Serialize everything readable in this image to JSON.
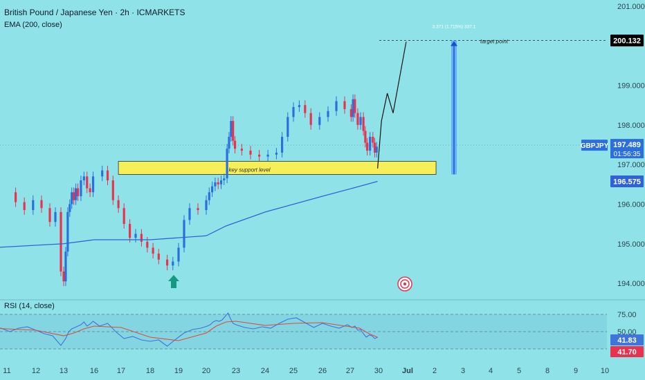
{
  "header": {
    "symbol_title": "British Pound / Japanese Yen · 2h · ICMARKETS",
    "ema_label": "EMA (200, close)",
    "rsi_label": "RSI (14, close)"
  },
  "colors": {
    "background": "#8fe3e8",
    "bull_candle": "#2a6fdb",
    "bear_candle": "#e8334f",
    "ema_line": "#2f62d6",
    "rsi_line": "#3f74d8",
    "rsi_ma_line": "#e04a3c",
    "support_zone": "#f6ef5a",
    "projection_bar": "#5a9cff",
    "arrow_marker": "#149a83"
  },
  "chart_data": {
    "type": "line",
    "price_axis": {
      "ticks": [
        "201.000",
        "199.000",
        "198.000",
        "197.000",
        "196.000",
        "195.000",
        "194.000"
      ],
      "range": [
        193.6,
        201.05
      ]
    },
    "date_axis": {
      "ticks": [
        "11",
        "12",
        "13",
        "16",
        "17",
        "18",
        "19",
        "20",
        "23",
        "24",
        "25",
        "26",
        "27",
        "30",
        "Jul",
        "2",
        "3",
        "4",
        "5",
        "8",
        "9",
        "10"
      ]
    },
    "price_series": [
      {
        "d": 11.0,
        "p": 196.3
      },
      {
        "d": 11.3,
        "p": 196.05
      },
      {
        "d": 11.6,
        "p": 195.85
      },
      {
        "d": 11.9,
        "p": 196.1
      },
      {
        "d": 12.2,
        "p": 195.9
      },
      {
        "d": 12.5,
        "p": 195.55
      },
      {
        "d": 12.7,
        "p": 195.8
      },
      {
        "d": 12.9,
        "p": 194.3
      },
      {
        "d": 13.0,
        "p": 194.05
      },
      {
        "d": 13.2,
        "p": 194.8
      },
      {
        "d": 13.4,
        "p": 195.8
      },
      {
        "d": 13.6,
        "p": 196.0
      },
      {
        "d": 13.8,
        "p": 196.3
      },
      {
        "d": 14.0,
        "p": 196.1
      },
      {
        "d": 14.2,
        "p": 196.4
      },
      {
        "d": 14.4,
        "p": 196.2
      },
      {
        "d": 14.7,
        "p": 196.6
      },
      {
        "d": 15.0,
        "p": 196.7
      },
      {
        "d": 15.3,
        "p": 196.4
      },
      {
        "d": 15.6,
        "p": 196.3
      },
      {
        "d": 15.9,
        "p": 196.7
      },
      {
        "d": 16.3,
        "p": 196.85
      },
      {
        "d": 16.5,
        "p": 196.6
      },
      {
        "d": 16.7,
        "p": 196.1
      },
      {
        "d": 16.9,
        "p": 195.9
      },
      {
        "d": 17.1,
        "p": 195.5
      },
      {
        "d": 17.3,
        "p": 195.15
      },
      {
        "d": 17.5,
        "p": 195.25
      },
      {
        "d": 17.7,
        "p": 195.05
      },
      {
        "d": 17.9,
        "p": 194.9
      },
      {
        "d": 18.1,
        "p": 194.75
      },
      {
        "d": 18.3,
        "p": 194.6
      },
      {
        "d": 18.6,
        "p": 194.45
      },
      {
        "d": 18.8,
        "p": 194.55
      },
      {
        "d": 19.0,
        "p": 194.9
      },
      {
        "d": 19.2,
        "p": 195.6
      },
      {
        "d": 19.4,
        "p": 195.9
      },
      {
        "d": 19.7,
        "p": 195.85
      },
      {
        "d": 20.0,
        "p": 196.1
      },
      {
        "d": 20.3,
        "p": 196.3
      },
      {
        "d": 20.6,
        "p": 196.45
      },
      {
        "d": 20.9,
        "p": 196.55
      },
      {
        "d": 21.2,
        "p": 196.5
      },
      {
        "d": 21.5,
        "p": 196.6
      },
      {
        "d": 21.8,
        "p": 196.65
      },
      {
        "d": 22.1,
        "p": 197.4
      },
      {
        "d": 22.3,
        "p": 197.7
      },
      {
        "d": 22.5,
        "p": 198.1
      },
      {
        "d": 22.7,
        "p": 197.6
      },
      {
        "d": 22.9,
        "p": 197.4
      },
      {
        "d": 23.2,
        "p": 197.35
      },
      {
        "d": 23.5,
        "p": 197.25
      },
      {
        "d": 23.8,
        "p": 197.2
      },
      {
        "d": 24.1,
        "p": 197.25
      },
      {
        "d": 24.4,
        "p": 197.3
      },
      {
        "d": 24.6,
        "p": 197.7
      },
      {
        "d": 24.8,
        "p": 198.2
      },
      {
        "d": 25.0,
        "p": 198.45
      },
      {
        "d": 25.2,
        "p": 198.5
      },
      {
        "d": 25.4,
        "p": 198.3
      },
      {
        "d": 25.6,
        "p": 198.0
      },
      {
        "d": 25.9,
        "p": 198.2
      },
      {
        "d": 26.2,
        "p": 198.35
      },
      {
        "d": 26.5,
        "p": 198.6
      },
      {
        "d": 26.8,
        "p": 198.4
      },
      {
        "d": 27.1,
        "p": 198.2
      },
      {
        "d": 27.3,
        "p": 198.65
      },
      {
        "d": 27.5,
        "p": 198.3
      },
      {
        "d": 27.8,
        "p": 198.0
      },
      {
        "d": 28.1,
        "p": 198.2
      },
      {
        "d": 28.4,
        "p": 197.85
      },
      {
        "d": 28.6,
        "p": 197.55
      },
      {
        "d": 28.8,
        "p": 197.35
      },
      {
        "d": 29.1,
        "p": 197.7
      },
      {
        "d": 29.4,
        "p": 197.55
      },
      {
        "d": 29.6,
        "p": 197.3
      },
      {
        "d": 29.8,
        "p": 197.45
      }
    ],
    "ema_series": [
      {
        "d": 10.5,
        "p": 194.9
      },
      {
        "d": 13.0,
        "p": 195.0
      },
      {
        "d": 16.0,
        "p": 195.1
      },
      {
        "d": 18.0,
        "p": 195.1
      },
      {
        "d": 20.0,
        "p": 195.2
      },
      {
        "d": 22.0,
        "p": 195.45
      },
      {
        "d": 24.0,
        "p": 195.8
      },
      {
        "d": 26.0,
        "p": 196.2
      },
      {
        "d": 28.0,
        "p": 196.45
      },
      {
        "d": 29.9,
        "p": 196.575
      }
    ],
    "projection_path": [
      {
        "d": 29.9,
        "p": 196.9
      },
      {
        "d": 30.1,
        "p": 198.1
      },
      {
        "d": 30.3,
        "p": 198.8
      },
      {
        "d": 30.5,
        "p": 198.3
      },
      {
        "d": 30.95,
        "p": 200.1
      }
    ],
    "support_zone": {
      "label": "key support level",
      "from": 196.75,
      "to": 197.08,
      "start": 16.9,
      "end": 32.05
    },
    "target": {
      "label": "target point",
      "value": 200.132,
      "value_label": "200.132",
      "measure_label": "3.371 (1.715%) 337.1"
    },
    "current": {
      "symbol": "GBPJPY",
      "price": "197.489",
      "countdown": "01:56:35"
    },
    "ema_value_label": "196.575",
    "rsi": {
      "ticks": [
        "75.00",
        "50.00"
      ],
      "value_label": "41.83",
      "ma_value_label": "41.70",
      "series": [
        {
          "d": 10.5,
          "v": 53
        },
        {
          "d": 10.8,
          "v": 55
        },
        {
          "d": 11.1,
          "v": 50
        },
        {
          "d": 11.4,
          "v": 55
        },
        {
          "d": 11.7,
          "v": 57
        },
        {
          "d": 12.0,
          "v": 52
        },
        {
          "d": 12.3,
          "v": 47
        },
        {
          "d": 12.6,
          "v": 44
        },
        {
          "d": 12.9,
          "v": 30
        },
        {
          "d": 13.2,
          "v": 40
        },
        {
          "d": 13.5,
          "v": 50
        },
        {
          "d": 13.8,
          "v": 54
        },
        {
          "d": 14.1,
          "v": 56
        },
        {
          "d": 14.4,
          "v": 58
        },
        {
          "d": 14.7,
          "v": 60
        },
        {
          "d": 15.0,
          "v": 64
        },
        {
          "d": 15.3,
          "v": 58
        },
        {
          "d": 15.6,
          "v": 61
        },
        {
          "d": 15.9,
          "v": 65
        },
        {
          "d": 16.2,
          "v": 58
        },
        {
          "d": 16.5,
          "v": 62
        },
        {
          "d": 16.8,
          "v": 50
        },
        {
          "d": 17.1,
          "v": 40
        },
        {
          "d": 17.4,
          "v": 43
        },
        {
          "d": 17.7,
          "v": 38
        },
        {
          "d": 18.0,
          "v": 36
        },
        {
          "d": 18.3,
          "v": 38
        },
        {
          "d": 18.6,
          "v": 29
        },
        {
          "d": 18.9,
          "v": 39
        },
        {
          "d": 19.2,
          "v": 48
        },
        {
          "d": 19.5,
          "v": 53
        },
        {
          "d": 19.8,
          "v": 55
        },
        {
          "d": 20.1,
          "v": 58
        },
        {
          "d": 20.4,
          "v": 60
        },
        {
          "d": 20.7,
          "v": 64
        },
        {
          "d": 21.0,
          "v": 66
        },
        {
          "d": 21.3,
          "v": 65
        },
        {
          "d": 21.6,
          "v": 67
        },
        {
          "d": 21.9,
          "v": 72
        },
        {
          "d": 22.2,
          "v": 77
        },
        {
          "d": 22.4,
          "v": 70
        },
        {
          "d": 22.7,
          "v": 62
        },
        {
          "d": 23.0,
          "v": 60
        },
        {
          "d": 23.3,
          "v": 56
        },
        {
          "d": 23.6,
          "v": 54
        },
        {
          "d": 23.9,
          "v": 57
        },
        {
          "d": 24.2,
          "v": 55
        },
        {
          "d": 24.5,
          "v": 62
        },
        {
          "d": 24.8,
          "v": 68
        },
        {
          "d": 25.1,
          "v": 70
        },
        {
          "d": 25.4,
          "v": 63
        },
        {
          "d": 25.7,
          "v": 56
        },
        {
          "d": 26.0,
          "v": 62
        },
        {
          "d": 26.3,
          "v": 58
        },
        {
          "d": 26.6,
          "v": 55
        },
        {
          "d": 26.9,
          "v": 60
        },
        {
          "d": 27.2,
          "v": 56
        },
        {
          "d": 27.5,
          "v": 58
        },
        {
          "d": 27.8,
          "v": 52
        },
        {
          "d": 28.1,
          "v": 53
        },
        {
          "d": 28.4,
          "v": 47
        },
        {
          "d": 28.7,
          "v": 42
        },
        {
          "d": 29.0,
          "v": 45
        },
        {
          "d": 29.3,
          "v": 44
        },
        {
          "d": 29.6,
          "v": 40
        },
        {
          "d": 29.9,
          "v": 41.83
        }
      ],
      "ma_series": [
        {
          "d": 10.5,
          "v": 55
        },
        {
          "d": 11.0,
          "v": 54
        },
        {
          "d": 12.0,
          "v": 52
        },
        {
          "d": 13.0,
          "v": 44
        },
        {
          "d": 14.0,
          "v": 48
        },
        {
          "d": 15.0,
          "v": 54
        },
        {
          "d": 16.0,
          "v": 58
        },
        {
          "d": 17.0,
          "v": 56
        },
        {
          "d": 18.0,
          "v": 42
        },
        {
          "d": 19.0,
          "v": 37
        },
        {
          "d": 20.0,
          "v": 48
        },
        {
          "d": 21.0,
          "v": 58
        },
        {
          "d": 22.0,
          "v": 64
        },
        {
          "d": 23.0,
          "v": 65
        },
        {
          "d": 24.0,
          "v": 59
        },
        {
          "d": 25.0,
          "v": 62
        },
        {
          "d": 26.0,
          "v": 63
        },
        {
          "d": 27.0,
          "v": 57
        },
        {
          "d": 28.0,
          "v": 55
        },
        {
          "d": 29.0,
          "v": 47
        },
        {
          "d": 29.9,
          "v": 41.7
        }
      ]
    }
  }
}
